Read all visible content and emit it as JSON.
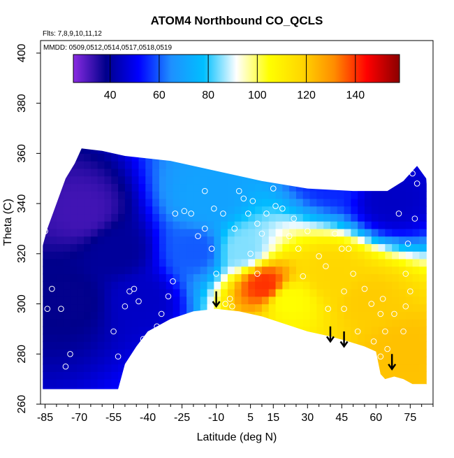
{
  "chart_data": {
    "type": "heatmap",
    "title": "ATOM4 Northbound CO_QCLS",
    "annotations": [
      "Flts: 7,8,9,10,11,12",
      "MMDD: 0509,0512,0514,0517,0518,0519"
    ],
    "xlabel": "Latitude (deg N)",
    "ylabel": "Theta (C)",
    "xlim": [
      -87,
      85
    ],
    "ylim": [
      260,
      405
    ],
    "x_ticks": [
      -85,
      -70,
      -55,
      -40,
      -25,
      -10,
      5,
      15,
      30,
      45,
      60,
      75
    ],
    "y_ticks": [
      260,
      280,
      300,
      320,
      340,
      360,
      380,
      400
    ],
    "colorbar": {
      "min": 25,
      "max": 158,
      "ticks": [
        40,
        60,
        80,
        100,
        120,
        140
      ],
      "colors": [
        "#8a2be2",
        "#00008b",
        "#0000ff",
        "#1e90ff",
        "#00bfff",
        "#ffffff",
        "#ffff00",
        "#ffd700",
        "#ff8c00",
        "#ff0000",
        "#8b0000"
      ]
    },
    "field_regions": [
      {
        "lat": -70,
        "theta": 335,
        "value": 32
      },
      {
        "lat": -75,
        "theta": 300,
        "value": 38
      },
      {
        "lat": -55,
        "theta": 320,
        "value": 40
      },
      {
        "lat": -45,
        "theta": 300,
        "value": 45
      },
      {
        "lat": -20,
        "theta": 320,
        "value": 60
      },
      {
        "lat": -15,
        "theta": 340,
        "value": 70
      },
      {
        "lat": 0,
        "theta": 320,
        "value": 85
      },
      {
        "lat": 10,
        "theta": 306,
        "value": 140
      },
      {
        "lat": 20,
        "theta": 300,
        "value": 105
      },
      {
        "lat": 40,
        "theta": 310,
        "value": 118
      },
      {
        "lat": 55,
        "theta": 300,
        "value": 120
      },
      {
        "lat": 70,
        "theta": 280,
        "value": 122
      },
      {
        "lat": 65,
        "theta": 340,
        "value": 45
      },
      {
        "lat": 40,
        "theta": 350,
        "value": 55
      }
    ],
    "sample_points": [
      [
        -85,
        329
      ],
      [
        -82,
        306
      ],
      [
        -84,
        298
      ],
      [
        -78,
        298
      ],
      [
        -74,
        280
      ],
      [
        -76,
        275
      ],
      [
        -55,
        289
      ],
      [
        -53,
        279
      ],
      [
        -48,
        305
      ],
      [
        -50,
        299
      ],
      [
        -46,
        306
      ],
      [
        -44,
        301
      ],
      [
        -42,
        286
      ],
      [
        -40,
        279
      ],
      [
        -38,
        276
      ],
      [
        -36,
        291
      ],
      [
        -34,
        296
      ],
      [
        -31,
        303
      ],
      [
        -29,
        309
      ],
      [
        -28,
        336
      ],
      [
        -24,
        337
      ],
      [
        -21,
        336
      ],
      [
        -18,
        327
      ],
      [
        -15,
        330
      ],
      [
        -12,
        322
      ],
      [
        -10,
        312
      ],
      [
        -8,
        296
      ],
      [
        -6,
        296
      ],
      [
        -3,
        299
      ],
      [
        -2,
        330
      ],
      [
        0,
        345
      ],
      [
        2,
        342
      ],
      [
        4,
        336
      ],
      [
        6,
        341
      ],
      [
        8,
        332
      ],
      [
        10,
        328
      ],
      [
        12,
        336
      ],
      [
        15,
        346
      ],
      [
        19,
        338
      ],
      [
        24,
        334
      ],
      [
        26,
        322
      ],
      [
        -15,
        345
      ],
      [
        -11,
        338
      ],
      [
        -7,
        336
      ],
      [
        5,
        320
      ],
      [
        8,
        312
      ],
      [
        -6,
        300
      ],
      [
        -4,
        302
      ],
      [
        35,
        319
      ],
      [
        38,
        315
      ],
      [
        42,
        328
      ],
      [
        45,
        322
      ],
      [
        48,
        322
      ],
      [
        50,
        312
      ],
      [
        46,
        305
      ],
      [
        55,
        306
      ],
      [
        58,
        300
      ],
      [
        62,
        296
      ],
      [
        63,
        302
      ],
      [
        64,
        289
      ],
      [
        59,
        285
      ],
      [
        58,
        280
      ],
      [
        62,
        279
      ],
      [
        65,
        282
      ],
      [
        68,
        296
      ],
      [
        72,
        289
      ],
      [
        73,
        299
      ],
      [
        75,
        305
      ],
      [
        73,
        312
      ],
      [
        74,
        324
      ],
      [
        77,
        334
      ],
      [
        76,
        352
      ],
      [
        78,
        348
      ],
      [
        70,
        336
      ],
      [
        16,
        339
      ],
      [
        22,
        327
      ],
      [
        30,
        329
      ],
      [
        28,
        311
      ],
      [
        39,
        298
      ],
      [
        46,
        298
      ],
      [
        52,
        289
      ]
    ],
    "arrows": [
      {
        "lat": -10,
        "theta": 305
      },
      {
        "lat": 40,
        "theta": 291
      },
      {
        "lat": 46,
        "theta": 289
      },
      {
        "lat": 67,
        "theta": 280
      }
    ]
  }
}
